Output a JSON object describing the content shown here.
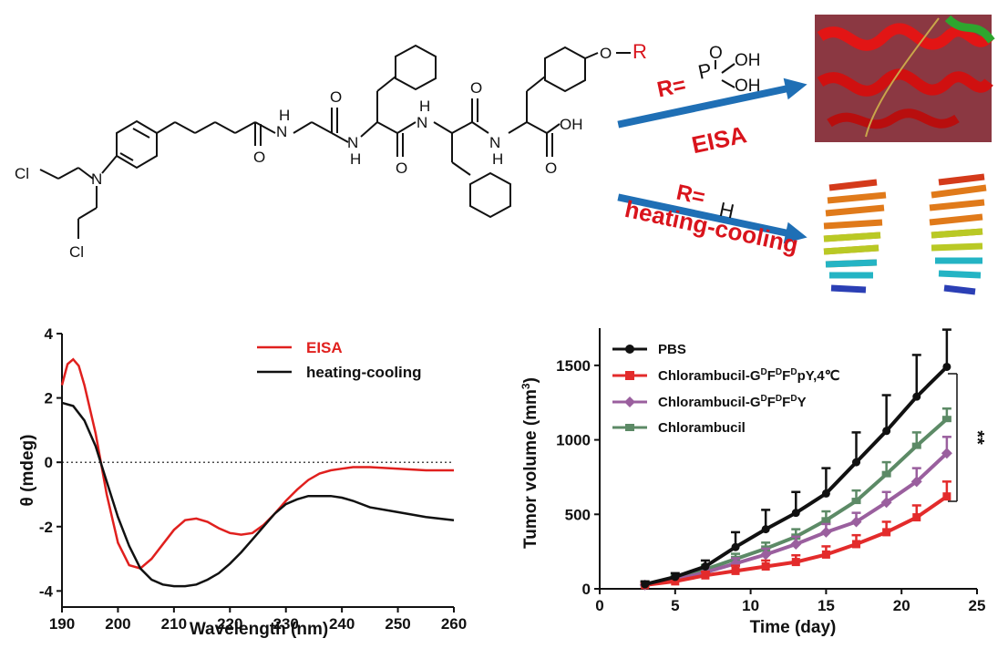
{
  "scheme": {
    "atoms": {
      "r": "R",
      "o": "O",
      "oh_top": "OH",
      "oh_bottom": "OH",
      "oh_acid": "OH",
      "o_carbonyl": "O",
      "nh": "H",
      "n": "N",
      "cl_top": "Cl",
      "cl_bottom": "Cl"
    },
    "arrow_top": {
      "prefix": "R=",
      "group_p": "P",
      "group_o": "O",
      "group_oh1": "OH",
      "group_oh2": "OH",
      "label": "EISA",
      "color": "#1f6fb5",
      "label_color": "#d9141c"
    },
    "arrow_bottom": {
      "prefix": "R=",
      "group": "H",
      "label": "heating-cooling",
      "color": "#1f6fb5",
      "label_color": "#d9141c"
    }
  },
  "chart_data": [
    {
      "type": "line",
      "title": "",
      "xlabel": "Wavelength (nm)",
      "ylabel": "θ (mdeg)",
      "xlim": [
        190,
        260
      ],
      "ylim": [
        -4.5,
        4
      ],
      "xticks": [
        190,
        200,
        210,
        220,
        230,
        240,
        250,
        260
      ],
      "yticks": [
        4,
        2,
        0,
        -2,
        -4
      ],
      "zero_line": "dotted",
      "legend_position": "top-right",
      "series": [
        {
          "name": "EISA",
          "color": "#e0201e",
          "x": [
            190,
            191,
            192,
            193,
            194,
            196,
            198,
            200,
            202,
            204,
            206,
            208,
            210,
            212,
            214,
            216,
            218,
            220,
            222,
            224,
            226,
            228,
            230,
            232,
            234,
            236,
            238,
            240,
            242,
            245,
            250,
            255,
            260
          ],
          "y": [
            2.4,
            3.05,
            3.2,
            3.0,
            2.4,
            0.9,
            -1.0,
            -2.5,
            -3.2,
            -3.3,
            -3.0,
            -2.55,
            -2.1,
            -1.8,
            -1.75,
            -1.85,
            -2.05,
            -2.2,
            -2.25,
            -2.2,
            -1.95,
            -1.6,
            -1.2,
            -0.85,
            -0.55,
            -0.35,
            -0.25,
            -0.2,
            -0.15,
            -0.15,
            -0.2,
            -0.25,
            -0.25
          ]
        },
        {
          "name": "heating-cooling",
          "color": "#111111",
          "x": [
            190,
            192,
            194,
            196,
            198,
            200,
            202,
            204,
            206,
            208,
            210,
            212,
            214,
            216,
            218,
            220,
            222,
            224,
            226,
            228,
            230,
            232,
            234,
            236,
            238,
            240,
            242,
            245,
            250,
            255,
            260
          ],
          "y": [
            1.85,
            1.75,
            1.3,
            0.5,
            -0.6,
            -1.7,
            -2.6,
            -3.3,
            -3.65,
            -3.8,
            -3.85,
            -3.85,
            -3.8,
            -3.65,
            -3.45,
            -3.15,
            -2.8,
            -2.4,
            -2.0,
            -1.6,
            -1.3,
            -1.15,
            -1.05,
            -1.05,
            -1.05,
            -1.1,
            -1.2,
            -1.4,
            -1.55,
            -1.7,
            -1.8
          ]
        }
      ]
    },
    {
      "type": "line",
      "title": "",
      "xlabel": "Time (day)",
      "ylabel": "Tumor volume (mm",
      "ylabel_sup": "3",
      "ylabel_end": ")",
      "xlim": [
        0,
        25
      ],
      "ylim": [
        0,
        1750
      ],
      "xticks": [
        0,
        5,
        10,
        15,
        20,
        25
      ],
      "yticks": [
        0,
        500,
        1000,
        1500
      ],
      "legend_position": "top-left",
      "significance": "**",
      "series": [
        {
          "name": "PBS",
          "color": "#111111",
          "marker": "circle",
          "x": [
            3,
            5,
            7,
            9,
            11,
            13,
            15,
            17,
            19,
            21,
            23
          ],
          "y": [
            30,
            80,
            150,
            280,
            400,
            510,
            640,
            850,
            1060,
            1290,
            1490
          ],
          "err": [
            20,
            25,
            40,
            100,
            130,
            140,
            170,
            200,
            240,
            280,
            250
          ]
        },
        {
          "name_parts": [
            "Chlorambucil-G",
            "D",
            "F",
            "D",
            "F",
            "D",
            "pY,4℃"
          ],
          "color": "#e32b2b",
          "marker": "square",
          "x": [
            3,
            5,
            7,
            9,
            11,
            13,
            15,
            17,
            19,
            21,
            23
          ],
          "y": [
            25,
            50,
            90,
            120,
            150,
            180,
            230,
            300,
            380,
            480,
            620
          ],
          "err": [
            15,
            20,
            25,
            35,
            40,
            45,
            55,
            60,
            70,
            80,
            100
          ]
        },
        {
          "name_parts": [
            "Chlorambucil-G",
            "D",
            "F",
            "D",
            "F",
            "D",
            "Y"
          ],
          "color": "#9a5f9e",
          "marker": "diamond",
          "x": [
            3,
            5,
            7,
            9,
            11,
            13,
            15,
            17,
            19,
            21,
            23
          ],
          "y": [
            25,
            60,
            110,
            170,
            230,
            300,
            380,
            450,
            580,
            720,
            910
          ],
          "err": [
            15,
            20,
            30,
            35,
            40,
            50,
            55,
            60,
            70,
            90,
            110
          ]
        },
        {
          "name": "Chlorambucil",
          "color": "#5c8a66",
          "marker": "bar",
          "x": [
            3,
            5,
            7,
            9,
            11,
            13,
            15,
            17,
            19,
            21,
            23
          ],
          "y": [
            30,
            70,
            130,
            200,
            270,
            350,
            460,
            590,
            770,
            960,
            1140
          ],
          "err": [
            15,
            20,
            30,
            35,
            40,
            50,
            60,
            70,
            80,
            90,
            70
          ]
        }
      ]
    }
  ]
}
